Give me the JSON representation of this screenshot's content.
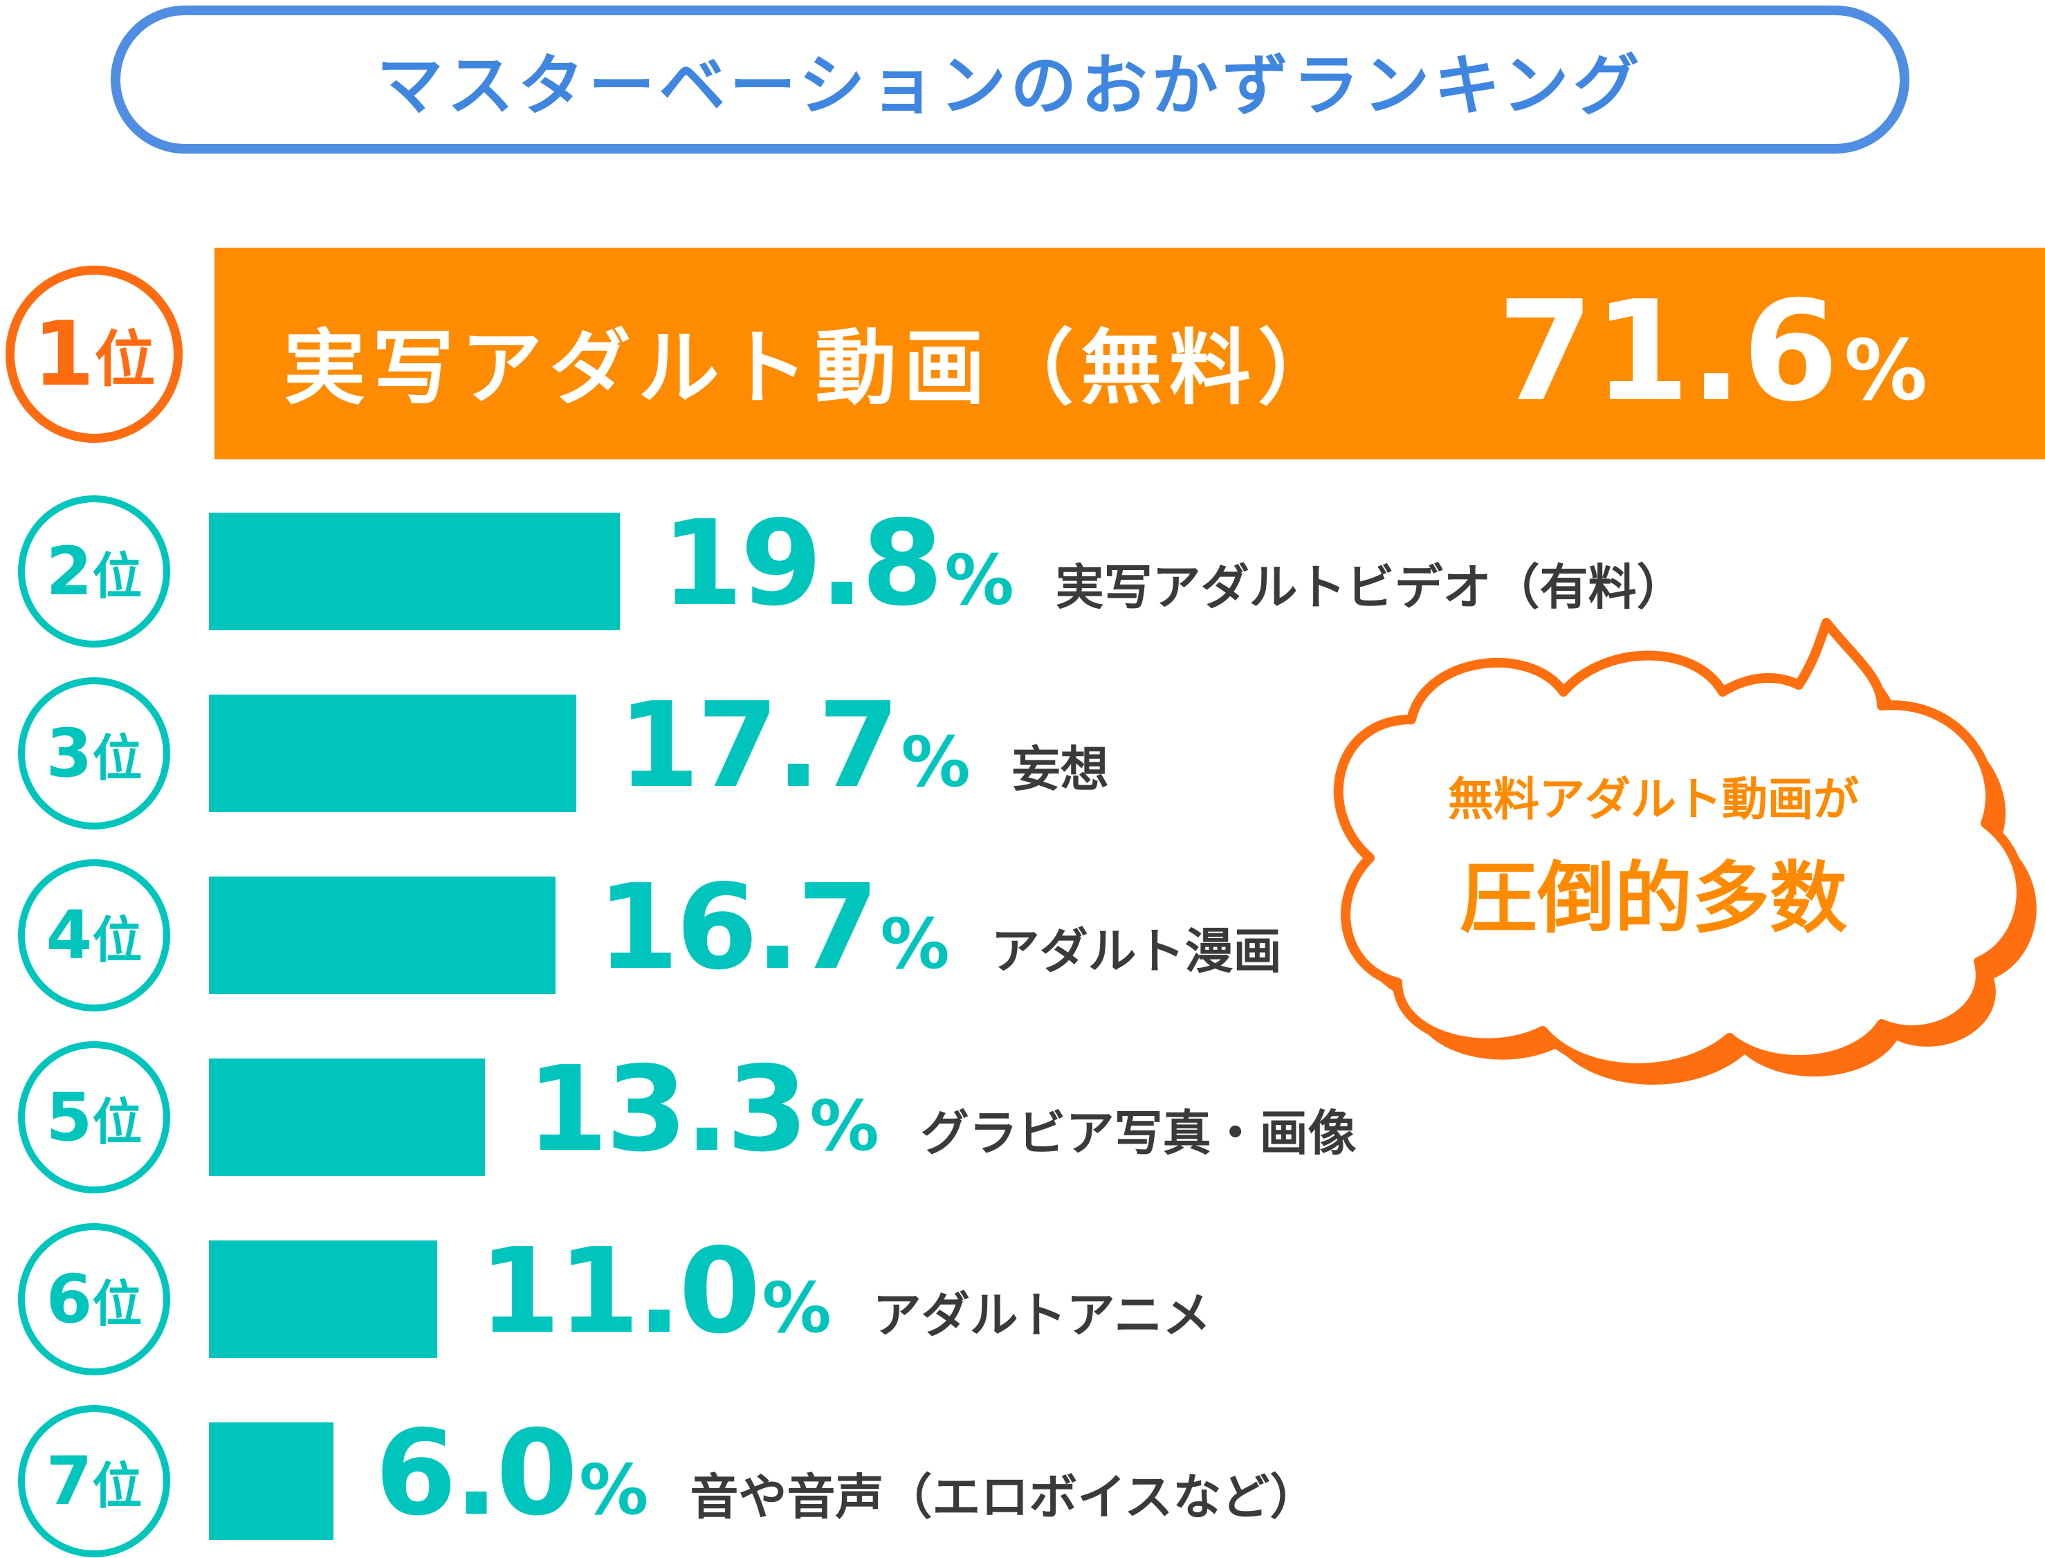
{
  "header": {
    "title": "マスターベーションのおかずランキング"
  },
  "colors": {
    "title_border": "#4f8ee3",
    "title_text": "#3f86e0",
    "top_fill": "#ff8b00",
    "top_badge": "#ff6b10",
    "bar_fill": "#00c5bd",
    "label_text": "#3a3a3a",
    "bubble_fill": "#ff6f10",
    "bubble_text": "#ff8a00"
  },
  "rank_suffix": "位",
  "percent_sign": "%",
  "chart_data": {
    "type": "bar",
    "orientation": "horizontal",
    "title": "マスターベーションのおかずランキング",
    "unit": "%",
    "categories": [
      "実写アダルト動画（無料）",
      "実写アダルトビデオ（有料）",
      "妄想",
      "アダルト漫画",
      "グラビア写真・画像",
      "アダルトアニメ",
      "音や音声（エロボイスなど）"
    ],
    "ranks": [
      1,
      2,
      3,
      4,
      5,
      6,
      7
    ],
    "values": [
      71.6,
      19.8,
      17.7,
      16.7,
      13.3,
      11.0,
      6.0
    ],
    "value_labels": [
      "71.6",
      "19.8",
      "17.7",
      "16.7",
      "13.3",
      "11.0",
      "6.0"
    ],
    "grid": false,
    "legend": false
  },
  "callout": {
    "line1": "無料アダルト動画が",
    "line2": "圧倒的多数"
  }
}
